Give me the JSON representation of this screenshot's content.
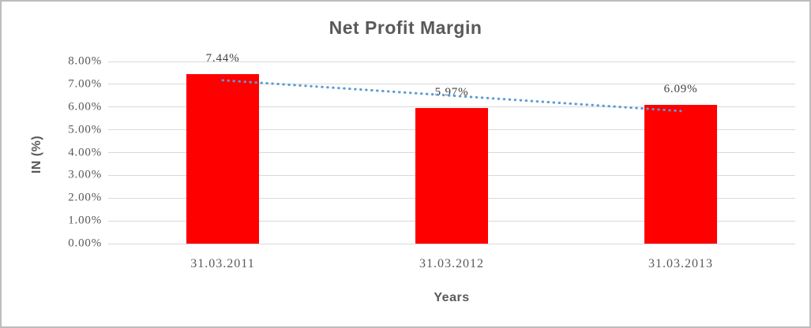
{
  "title": "Net Profit Margin",
  "y_axis_title": "IN (%)",
  "x_axis_title": "Years",
  "chart_data": {
    "type": "bar",
    "title": "Net Profit Margin",
    "categories": [
      "31.03.2011",
      "31.03.2012",
      "31.03.2013"
    ],
    "values": [
      7.44,
      5.97,
      6.09
    ],
    "data_labels": [
      "7.44%",
      "5.97%",
      "6.09%"
    ],
    "xlabel": "Years",
    "ylabel": "IN (%)",
    "ylim": [
      0,
      8
    ],
    "y_tick_step": 1,
    "y_tick_labels": [
      "0.00%",
      "1.00%",
      "2.00%",
      "3.00%",
      "4.00%",
      "5.00%",
      "6.00%",
      "7.00%",
      "8.00%"
    ],
    "grid": true,
    "legend": false,
    "bar_color": "#FF0000",
    "trendline": {
      "type": "linear",
      "style": "dotted",
      "color": "#5B9BD5"
    }
  },
  "colors": {
    "bar": "#FF0000",
    "trendline": "#5B9BD5",
    "gridline": "#D9D9D9",
    "axis_text": "#595959",
    "data_label_text": "#404040",
    "background": "#FFFFFF",
    "border": "#BDBDBD"
  }
}
